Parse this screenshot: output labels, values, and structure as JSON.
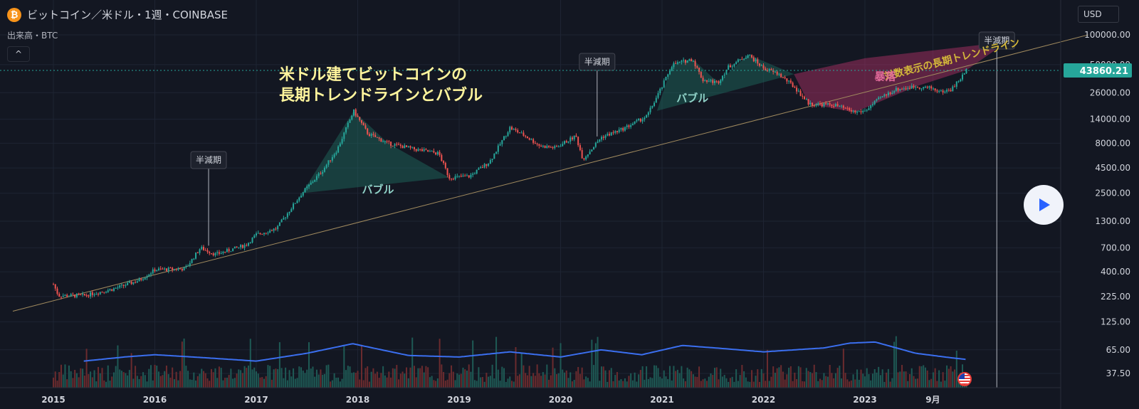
{
  "header": {
    "coin_glyph": "₿",
    "title": "ビットコイン／米ドル・1週・COINBASE",
    "volume_label": "出来高・BTC",
    "collapse_glyph": "^",
    "currency": "USD"
  },
  "colors": {
    "background": "#131722",
    "grid": "#1e2433",
    "up": "#26a69a",
    "down": "#ef5350",
    "trendline": "#a08a5e",
    "volume_ma": "#3b6ff0",
    "bubble_fill": "#1f6f62",
    "crash_fill": "#b8336a",
    "price_label_bg": "#26a69a",
    "annotation_title": "#fff59d",
    "trend_text": "#d4b83a"
  },
  "chart_data": {
    "type": "candlestick",
    "y_scale": "log",
    "y_ticks": [
      "100000.00",
      "50000.00",
      "26000.00",
      "14000.00",
      "8000.00",
      "4500.00",
      "2500.00",
      "1300.00",
      "700.00",
      "400.00",
      "225.00",
      "125.00",
      "65.00",
      "37.50"
    ],
    "x_ticks": [
      "2015",
      "2016",
      "2017",
      "2018",
      "2019",
      "2020",
      "2021",
      "2022",
      "2023",
      "9月"
    ],
    "last_price": "43860.21",
    "price_anchors": [
      [
        2015.0,
        300
      ],
      [
        2015.05,
        230
      ],
      [
        2015.3,
        230
      ],
      [
        2015.6,
        270
      ],
      [
        2015.85,
        330
      ],
      [
        2016.0,
        420
      ],
      [
        2016.3,
        430
      ],
      [
        2016.45,
        700
      ],
      [
        2016.6,
        600
      ],
      [
        2016.9,
        750
      ],
      [
        2017.0,
        950
      ],
      [
        2017.2,
        1100
      ],
      [
        2017.45,
        2500
      ],
      [
        2017.65,
        4200
      ],
      [
        2017.8,
        7000
      ],
      [
        2017.96,
        17000
      ],
      [
        2018.1,
        10000
      ],
      [
        2018.3,
        8000
      ],
      [
        2018.55,
        7000
      ],
      [
        2018.8,
        6300
      ],
      [
        2018.9,
        3600
      ],
      [
        2019.1,
        3700
      ],
      [
        2019.3,
        5200
      ],
      [
        2019.5,
        11500
      ],
      [
        2019.65,
        9500
      ],
      [
        2019.8,
        7500
      ],
      [
        2019.95,
        7200
      ],
      [
        2020.15,
        9500
      ],
      [
        2020.22,
        5500
      ],
      [
        2020.4,
        9200
      ],
      [
        2020.6,
        11000
      ],
      [
        2020.85,
        15000
      ],
      [
        2021.0,
        30000
      ],
      [
        2021.1,
        50000
      ],
      [
        2021.3,
        57000
      ],
      [
        2021.4,
        35000
      ],
      [
        2021.55,
        33000
      ],
      [
        2021.65,
        47000
      ],
      [
        2021.85,
        63000
      ],
      [
        2022.0,
        46000
      ],
      [
        2022.15,
        40000
      ],
      [
        2022.3,
        30000
      ],
      [
        2022.45,
        20000
      ],
      [
        2022.7,
        19500
      ],
      [
        2022.9,
        16500
      ],
      [
        2023.0,
        17000
      ],
      [
        2023.15,
        23000
      ],
      [
        2023.3,
        28000
      ],
      [
        2023.5,
        30000
      ],
      [
        2023.65,
        29000
      ],
      [
        2023.75,
        26500
      ],
      [
        2023.85,
        28000
      ],
      [
        2023.95,
        37000
      ],
      [
        2024.0,
        43860
      ]
    ],
    "volume_ma_anchors": [
      [
        2015.3,
        50
      ],
      [
        2015.7,
        55
      ],
      [
        2016.0,
        58
      ],
      [
        2016.5,
        54
      ],
      [
        2017.0,
        50
      ],
      [
        2017.5,
        60
      ],
      [
        2017.95,
        75
      ],
      [
        2018.5,
        57
      ],
      [
        2019.0,
        55
      ],
      [
        2019.5,
        62
      ],
      [
        2020.0,
        55
      ],
      [
        2020.4,
        65
      ],
      [
        2020.8,
        58
      ],
      [
        2021.2,
        72
      ],
      [
        2021.6,
        67
      ],
      [
        2022.0,
        62
      ],
      [
        2022.6,
        68
      ],
      [
        2022.85,
        76
      ],
      [
        2023.1,
        78
      ],
      [
        2023.5,
        60
      ],
      [
        2023.85,
        54
      ],
      [
        2024.0,
        52
      ]
    ],
    "trendline": {
      "x0": 2014.6,
      "price0": 160,
      "x1": 2025.2,
      "price1": 100000
    },
    "halvings": [
      {
        "label": "半減期",
        "x": 2016.53
      },
      {
        "label": "半減期",
        "x": 2020.36
      },
      {
        "label": "半減期",
        "x": 2024.3
      }
    ],
    "bubbles": [
      {
        "label": "バブル",
        "points": [
          [
            2017.45,
            2500
          ],
          [
            2017.96,
            17000
          ],
          [
            2018.3,
            8000
          ],
          [
            2018.9,
            3600
          ]
        ]
      },
      {
        "label": "バブル",
        "points": [
          [
            2020.95,
            17000
          ],
          [
            2021.1,
            50000
          ],
          [
            2021.3,
            57000
          ],
          [
            2021.55,
            33000
          ],
          [
            2021.85,
            63000
          ],
          [
            2022.3,
            40000
          ]
        ]
      }
    ],
    "crash": {
      "label": "暴落",
      "points": [
        [
          2022.3,
          40000
        ],
        [
          2023.0,
          58000
        ],
        [
          2024.4,
          85000
        ],
        [
          2024.0,
          43860
        ],
        [
          2023.5,
          30000
        ],
        [
          2022.9,
          16500
        ],
        [
          2022.45,
          20000
        ]
      ]
    },
    "annotations": {
      "title_line1": "米ドル建てビットコインの",
      "title_line2": "長期トレンドラインとバブル",
      "trend_label": "対数表示の長期トレンドライン"
    }
  }
}
